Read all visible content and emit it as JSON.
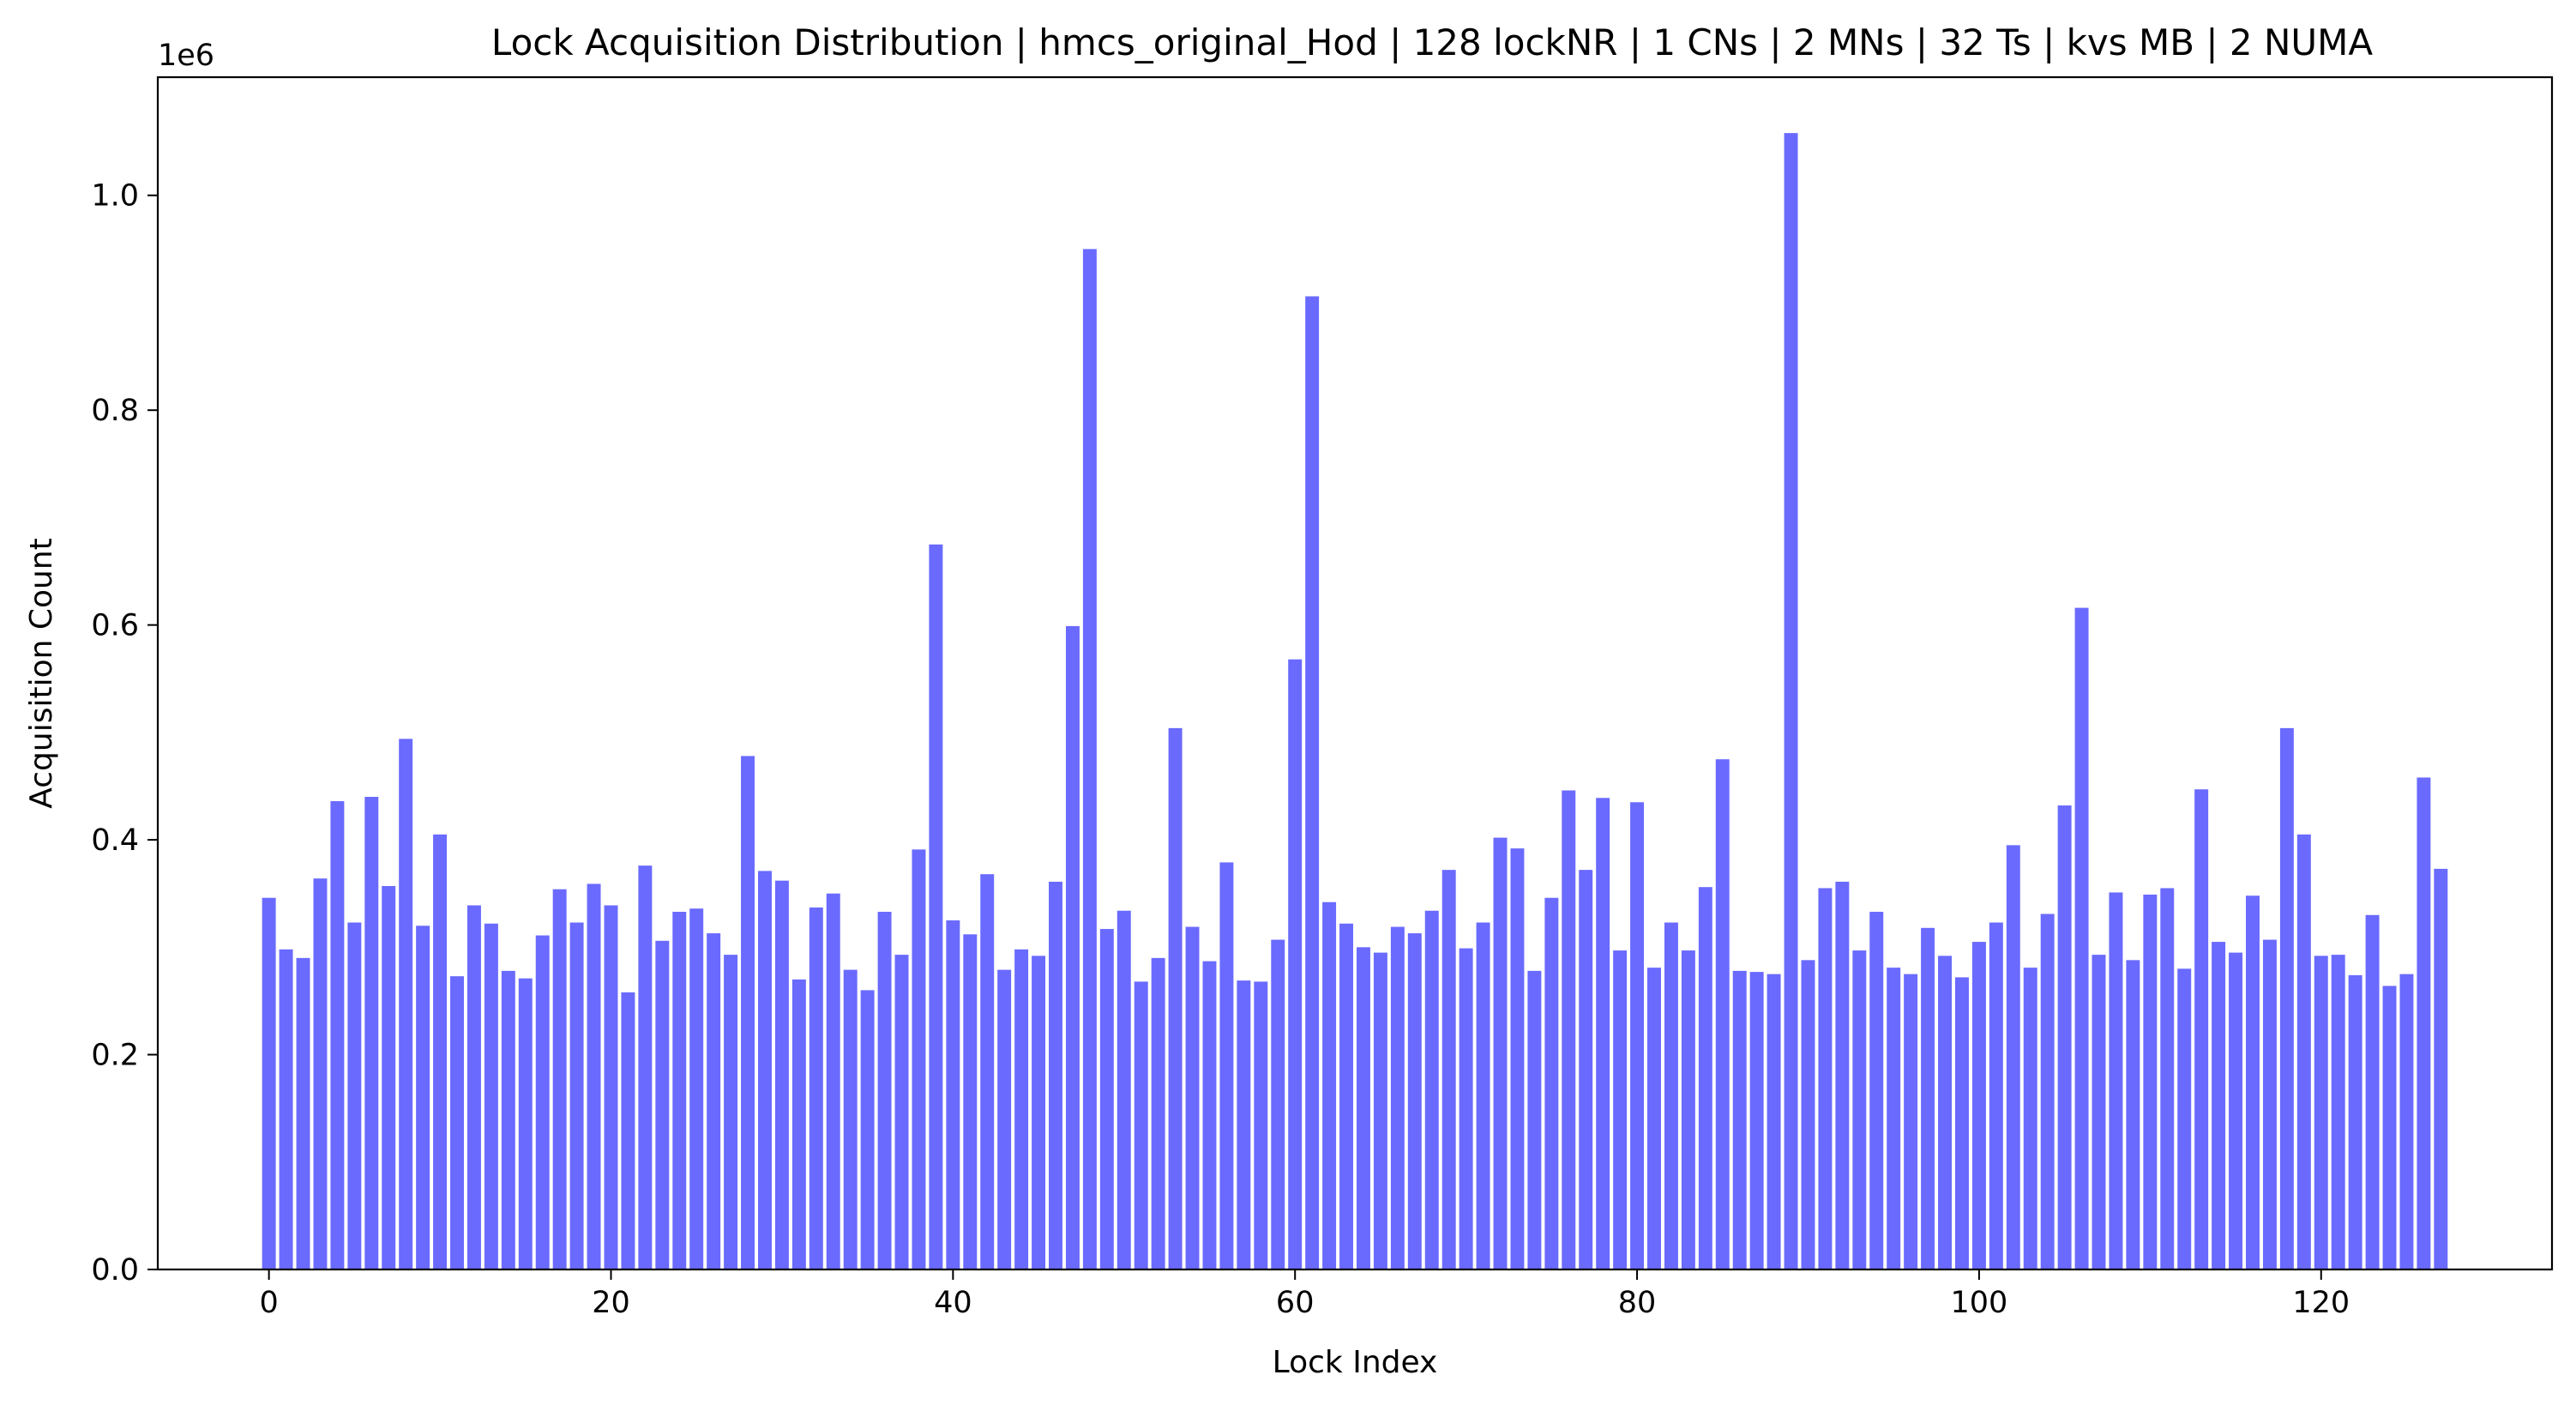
{
  "chart_data": {
    "type": "bar",
    "title": "Lock Acquisition Distribution | hmcs_original_Hod | 128 lockNR | 1 CNs | 2 MNs | 32 Ts | kvs MB | 2 NUMA",
    "xlabel": "Lock Index",
    "ylabel": "Acquisition Count",
    "y_offset_label": "1e6",
    "bar_color": "#6a6aff",
    "xlim": [
      -6.5,
      133.5
    ],
    "ylim": [
      0,
      1.11
    ],
    "grid": false,
    "legend": "none",
    "x_ticks": [
      0,
      20,
      40,
      60,
      80,
      100,
      120
    ],
    "x_tick_labels": [
      "0",
      "20",
      "40",
      "60",
      "80",
      "100",
      "120"
    ],
    "y_ticks": [
      0,
      0.2,
      0.4,
      0.6,
      0.8,
      1.0
    ],
    "y_tick_labels": [
      "0.0",
      "0.2",
      "0.4",
      "0.6",
      "0.8",
      "1.0"
    ],
    "x": [
      0,
      1,
      2,
      3,
      4,
      5,
      6,
      7,
      8,
      9,
      10,
      11,
      12,
      13,
      14,
      15,
      16,
      17,
      18,
      19,
      20,
      21,
      22,
      23,
      24,
      25,
      26,
      27,
      28,
      29,
      30,
      31,
      32,
      33,
      34,
      35,
      36,
      37,
      38,
      39,
      40,
      41,
      42,
      43,
      44,
      45,
      46,
      47,
      48,
      49,
      50,
      51,
      52,
      53,
      54,
      55,
      56,
      57,
      58,
      59,
      60,
      61,
      62,
      63,
      64,
      65,
      66,
      67,
      68,
      69,
      70,
      71,
      72,
      73,
      74,
      75,
      76,
      77,
      78,
      79,
      80,
      81,
      82,
      83,
      84,
      85,
      86,
      87,
      88,
      89,
      90,
      91,
      92,
      93,
      94,
      95,
      96,
      97,
      98,
      99,
      100,
      101,
      102,
      103,
      104,
      105,
      106,
      107,
      108,
      109,
      110,
      111,
      112,
      113,
      114,
      115,
      116,
      117,
      118,
      119,
      120,
      121,
      122,
      123,
      124,
      125,
      126,
      127
    ],
    "values": [
      0.346,
      0.298,
      0.29,
      0.364,
      0.436,
      0.323,
      0.44,
      0.357,
      0.494,
      0.32,
      0.405,
      0.273,
      0.339,
      0.322,
      0.278,
      0.271,
      0.311,
      0.354,
      0.323,
      0.359,
      0.339,
      0.258,
      0.376,
      0.306,
      0.333,
      0.336,
      0.313,
      0.293,
      0.478,
      0.371,
      0.362,
      0.27,
      0.337,
      0.35,
      0.279,
      0.26,
      0.333,
      0.293,
      0.391,
      0.675,
      0.325,
      0.312,
      0.368,
      0.279,
      0.298,
      0.292,
      0.361,
      0.599,
      0.95,
      0.317,
      0.334,
      0.268,
      0.29,
      0.504,
      0.319,
      0.287,
      0.379,
      0.269,
      0.268,
      0.307,
      0.568,
      0.906,
      0.342,
      0.322,
      0.3,
      0.295,
      0.319,
      0.313,
      0.334,
      0.372,
      0.299,
      0.323,
      0.402,
      0.392,
      0.278,
      0.346,
      0.446,
      0.372,
      0.439,
      0.297,
      0.435,
      0.281,
      0.323,
      0.297,
      0.356,
      0.475,
      0.278,
      0.277,
      0.275,
      1.058,
      0.288,
      0.355,
      0.361,
      0.297,
      0.333,
      0.281,
      0.275,
      0.318,
      0.292,
      0.272,
      0.305,
      0.323,
      0.395,
      0.281,
      0.331,
      0.432,
      0.616,
      0.293,
      0.351,
      0.288,
      0.349,
      0.355,
      0.28,
      0.447,
      0.305,
      0.295,
      0.348,
      0.307,
      0.504,
      0.405,
      0.292,
      0.293,
      0.274,
      0.33,
      0.264,
      0.275,
      0.458,
      0.373
    ]
  }
}
